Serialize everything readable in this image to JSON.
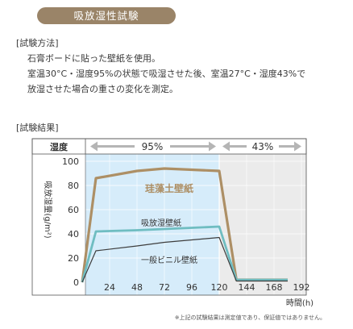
{
  "header": {
    "title": "吸放湿性試験"
  },
  "method": {
    "heading": "[試験方法]",
    "lines": [
      "石膏ボードに貼った壁紙を使用。",
      "室温30°C・湿度95%の状態で吸湿させた後、室温27°C・湿度43%で",
      "放湿させた場合の重さの変化を測定。"
    ]
  },
  "results": {
    "heading": "[試験結果]"
  },
  "footnote": "※上記の試験結果は測定値であり、保証値ではありません。",
  "colors": {
    "humid_bg": "#d6ecfa",
    "dry_bg": "#ebebeb",
    "series_diatom": "#ad8f65",
    "series_absorb": "#6fbdc1",
    "series_vinyl": "#3d3d3d"
  },
  "chart_data": {
    "type": "line",
    "header_row": {
      "label": "湿度",
      "periods": [
        "95%",
        "43%"
      ]
    },
    "xlabel": "時間(h)",
    "ylabel": "吸放湿量(g/m²)",
    "xlim": [
      0,
      192
    ],
    "ylim": [
      0,
      100
    ],
    "x_ticks": [
      24,
      48,
      72,
      96,
      120,
      144,
      168,
      192
    ],
    "y_ticks": [
      0,
      20,
      40,
      60,
      80,
      100
    ],
    "phase_boundary": 120,
    "grid": true,
    "series": [
      {
        "name": "珪藻土壁紙",
        "color": "#ad8f65",
        "x": [
          0,
          12,
          48,
          72,
          96,
          120,
          135,
          180
        ],
        "y": [
          0,
          86,
          92,
          94,
          93,
          92,
          2,
          2
        ]
      },
      {
        "name": "吸放湿壁紙",
        "color": "#6fbdc1",
        "x": [
          0,
          12,
          48,
          72,
          96,
          120,
          135,
          180
        ],
        "y": [
          0,
          42,
          43,
          44,
          45,
          46,
          2,
          2
        ]
      },
      {
        "name": "一般ビニル壁紙",
        "color": "#3d3d3d",
        "x": [
          0,
          12,
          48,
          72,
          96,
          120,
          135,
          180
        ],
        "y": [
          0,
          26,
          30,
          33,
          35,
          37,
          1,
          1
        ]
      }
    ]
  }
}
